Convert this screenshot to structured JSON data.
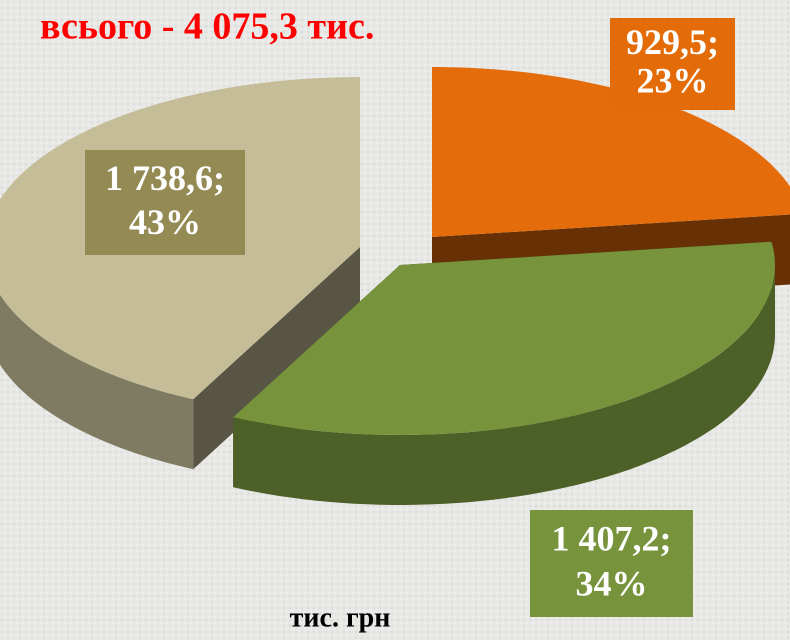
{
  "chart_data": {
    "type": "pie3d",
    "title": "всього - 4 075,3 тис.",
    "unit_label": "тис. грн",
    "values": [
      929.5,
      1407.2,
      1738.6
    ],
    "value_labels": [
      "929,5;",
      "1 407,2;",
      "1 738,6;"
    ],
    "percents": [
      23,
      34,
      43
    ],
    "percent_labels": [
      "23%",
      "34%",
      "43%"
    ],
    "colors": [
      "#e46c0a",
      "#77933c",
      "#c4bd97"
    ],
    "label_colors": [
      "#e36c09",
      "#77933c",
      "#948a54"
    ]
  }
}
